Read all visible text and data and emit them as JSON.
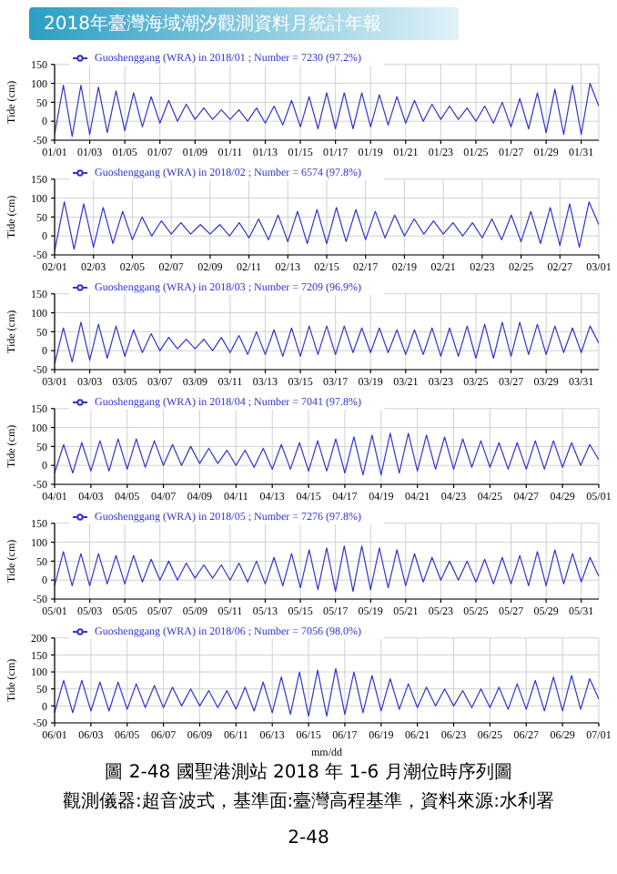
{
  "chart_data": [
    {
      "type": "line",
      "annotations": [
        "2018年臺灣海域潮汐觀測資料月統計年報"
      ],
      "ylabel": "Tide (cm)",
      "xlim": [
        "--01-01",
        "--02-01"
      ],
      "ylim": [
        -50,
        150
      ],
      "yticks": [
        -50,
        0,
        50,
        100,
        150
      ],
      "grid": true,
      "legend": "top left",
      "marker": "none",
      "line_style": "solid",
      "xticks": [
        {
          "value": "--01-01",
          "label": "01/01"
        },
        {
          "value": "--01-03",
          "label": "01/03"
        },
        {
          "value": "--01-05",
          "label": "01/05"
        },
        {
          "value": "--01-07",
          "label": "01/07"
        },
        {
          "value": "--01-09",
          "label": "01/09"
        },
        {
          "value": "--01-11",
          "label": "01/11"
        },
        {
          "value": "--01-13",
          "label": "01/13"
        },
        {
          "value": "--01-15",
          "label": "01/15"
        },
        {
          "value": "--01-17",
          "label": "01/17"
        },
        {
          "value": "--01-19",
          "label": "01/19"
        },
        {
          "value": "--01-21",
          "label": "01/21"
        },
        {
          "value": "--01-23",
          "label": "01/23"
        },
        {
          "value": "--01-25",
          "label": "01/25"
        },
        {
          "value": "--01-27",
          "label": "01/27"
        },
        {
          "value": "--01-29",
          "label": "01/29"
        },
        {
          "value": "--01-31",
          "label": "01/31"
        }
      ],
      "series": [
        {
          "name": "Guoshenggang (WRA) in 2018/01 ; Number = 7230 (97.2%)",
          "color": "#3333cc",
          "x": [
            "--01-01",
            "--01-01T12:00",
            "--01-02",
            "--01-02T12:00",
            "--01-03",
            "--01-03T12:00",
            "--01-04",
            "--01-04T12:00",
            "--01-05",
            "--01-05T12:00",
            "--01-06",
            "--01-06T12:00",
            "--01-07",
            "--01-07T12:00",
            "--01-08",
            "--01-08T12:00",
            "--01-09",
            "--01-09T12:00",
            "--01-10",
            "--01-10T12:00",
            "--01-11",
            "--01-11T12:00",
            "--01-12",
            "--01-12T12:00",
            "--01-13",
            "--01-13T12:00",
            "--01-14",
            "--01-14T12:00",
            "--01-15",
            "--01-15T12:00",
            "--01-16",
            "--01-16T12:00",
            "--01-17",
            "--01-17T12:00",
            "--01-18",
            "--01-18T12:00",
            "--01-19",
            "--01-19T12:00",
            "--01-20",
            "--01-20T12:00",
            "--01-21",
            "--01-21T12:00",
            "--01-22",
            "--01-22T12:00",
            "--01-23",
            "--01-23T12:00",
            "--01-24",
            "--01-24T12:00",
            "--01-25",
            "--01-25T12:00",
            "--01-26",
            "--01-26T12:00",
            "--01-27",
            "--01-27T12:00",
            "--01-28",
            "--01-28T12:00",
            "--01-29",
            "--01-29T12:00",
            "--01-30",
            "--01-30T12:00",
            "--01-31",
            "--01-31T12:00",
            "--02-01"
          ],
          "values": [
            -35,
            95,
            -40,
            95,
            -35,
            90,
            -30,
            80,
            -25,
            75,
            -15,
            65,
            -5,
            55,
            0,
            45,
            5,
            35,
            5,
            30,
            5,
            30,
            0,
            35,
            -5,
            40,
            -10,
            55,
            -15,
            65,
            -20,
            75,
            -20,
            75,
            -20,
            75,
            -15,
            70,
            -10,
            65,
            -5,
            55,
            0,
            45,
            5,
            40,
            5,
            35,
            0,
            40,
            -5,
            50,
            -15,
            60,
            -20,
            75,
            -30,
            85,
            -35,
            95,
            -35,
            100,
            40
          ]
        }
      ]
    },
    {
      "type": "line",
      "ylabel": "Tide (cm)",
      "xlim": [
        "--02-01",
        "--03-01"
      ],
      "ylim": [
        -50,
        150
      ],
      "yticks": [
        -50,
        0,
        50,
        100,
        150
      ],
      "grid": true,
      "legend": "top left",
      "marker": "none",
      "line_style": "solid",
      "xticks": [
        {
          "value": "--02-01",
          "label": "02/01"
        },
        {
          "value": "--02-03",
          "label": "02/03"
        },
        {
          "value": "--02-05",
          "label": "02/05"
        },
        {
          "value": "--02-07",
          "label": "02/07"
        },
        {
          "value": "--02-09",
          "label": "02/09"
        },
        {
          "value": "--02-11",
          "label": "02/11"
        },
        {
          "value": "--02-13",
          "label": "02/13"
        },
        {
          "value": "--02-15",
          "label": "02/15"
        },
        {
          "value": "--02-17",
          "label": "02/17"
        },
        {
          "value": "--02-19",
          "label": "02/19"
        },
        {
          "value": "--02-21",
          "label": "02/21"
        },
        {
          "value": "--02-23",
          "label": "02/23"
        },
        {
          "value": "--02-25",
          "label": "02/25"
        },
        {
          "value": "--02-27",
          "label": "02/27"
        },
        {
          "value": "--03-01",
          "label": "03/01"
        }
      ],
      "series": [
        {
          "name": "Guoshenggang (WRA) in 2018/02 ; Number = 6574 (97.8%)",
          "color": "#3333cc",
          "x": [
            "--02-01",
            "--02-01T12:00",
            "--02-02",
            "--02-02T12:00",
            "--02-03",
            "--02-03T12:00",
            "--02-04",
            "--02-04T12:00",
            "--02-05",
            "--02-05T12:00",
            "--02-06",
            "--02-06T12:00",
            "--02-07",
            "--02-07T12:00",
            "--02-08",
            "--02-08T12:00",
            "--02-09",
            "--02-09T12:00",
            "--02-10",
            "--02-10T12:00",
            "--02-11",
            "--02-11T12:00",
            "--02-12",
            "--02-12T12:00",
            "--02-13",
            "--02-13T12:00",
            "--02-14",
            "--02-14T12:00",
            "--02-15",
            "--02-15T12:00",
            "--02-16",
            "--02-16T12:00",
            "--02-17",
            "--02-17T12:00",
            "--02-18",
            "--02-18T12:00",
            "--02-19",
            "--02-19T12:00",
            "--02-20",
            "--02-20T12:00",
            "--02-21",
            "--02-21T12:00",
            "--02-22",
            "--02-22T12:00",
            "--02-23",
            "--02-23T12:00",
            "--02-24",
            "--02-24T12:00",
            "--02-25",
            "--02-25T12:00",
            "--02-26",
            "--02-26T12:00",
            "--02-27",
            "--02-27T12:00",
            "--02-28",
            "--02-28T12:00",
            "--03-01"
          ],
          "values": [
            -40,
            90,
            -35,
            85,
            -30,
            75,
            -20,
            65,
            -10,
            50,
            0,
            40,
            5,
            35,
            5,
            30,
            5,
            30,
            0,
            35,
            -5,
            45,
            -10,
            55,
            -15,
            65,
            -20,
            70,
            -20,
            75,
            -15,
            70,
            -10,
            65,
            -5,
            55,
            0,
            45,
            5,
            40,
            5,
            35,
            0,
            35,
            -5,
            45,
            -10,
            55,
            -15,
            65,
            -20,
            75,
            -25,
            85,
            -30,
            90,
            30
          ]
        }
      ]
    },
    {
      "type": "line",
      "ylabel": "Tide (cm)",
      "xlim": [
        "--03-01",
        "--04-01"
      ],
      "ylim": [
        -50,
        150
      ],
      "yticks": [
        -50,
        0,
        50,
        100,
        150
      ],
      "grid": true,
      "legend": "top left",
      "marker": "none",
      "line_style": "solid",
      "xticks": [
        {
          "value": "--03-01",
          "label": "03/01"
        },
        {
          "value": "--03-03",
          "label": "03/03"
        },
        {
          "value": "--03-05",
          "label": "03/05"
        },
        {
          "value": "--03-07",
          "label": "03/07"
        },
        {
          "value": "--03-09",
          "label": "03/09"
        },
        {
          "value": "--03-11",
          "label": "03/11"
        },
        {
          "value": "--03-13",
          "label": "03/13"
        },
        {
          "value": "--03-15",
          "label": "03/15"
        },
        {
          "value": "--03-17",
          "label": "03/17"
        },
        {
          "value": "--03-19",
          "label": "03/19"
        },
        {
          "value": "--03-21",
          "label": "03/21"
        },
        {
          "value": "--03-23",
          "label": "03/23"
        },
        {
          "value": "--03-25",
          "label": "03/25"
        },
        {
          "value": "--03-27",
          "label": "03/27"
        },
        {
          "value": "--03-29",
          "label": "03/29"
        },
        {
          "value": "--03-31",
          "label": "03/31"
        }
      ],
      "series": [
        {
          "name": "Guoshenggang (WRA) in 2018/03 ; Number = 7209 (96.9%)",
          "color": "#3333cc",
          "x": [
            "--03-01",
            "--03-01T12:00",
            "--03-02",
            "--03-02T12:00",
            "--03-03",
            "--03-03T12:00",
            "--03-04",
            "--03-04T12:00",
            "--03-05",
            "--03-05T12:00",
            "--03-06",
            "--03-06T12:00",
            "--03-07",
            "--03-07T12:00",
            "--03-08",
            "--03-08T12:00",
            "--03-09",
            "--03-09T12:00",
            "--03-10",
            "--03-10T12:00",
            "--03-11",
            "--03-11T12:00",
            "--03-12",
            "--03-12T12:00",
            "--03-13",
            "--03-13T12:00",
            "--03-14",
            "--03-14T12:00",
            "--03-15",
            "--03-15T12:00",
            "--03-16",
            "--03-16T12:00",
            "--03-17",
            "--03-17T12:00",
            "--03-18",
            "--03-18T12:00",
            "--03-19",
            "--03-19T12:00",
            "--03-20",
            "--03-20T12:00",
            "--03-21",
            "--03-21T12:00",
            "--03-22",
            "--03-22T12:00",
            "--03-23",
            "--03-23T12:00",
            "--03-24",
            "--03-24T12:00",
            "--03-25",
            "--03-25T12:00",
            "--03-26",
            "--03-26T12:00",
            "--03-27",
            "--03-27T12:00",
            "--03-28",
            "--03-28T12:00",
            "--03-29",
            "--03-29T12:00",
            "--03-30",
            "--03-30T12:00",
            "--03-31",
            "--03-31T12:00",
            "--04-01"
          ],
          "values": [
            -35,
            60,
            -30,
            75,
            -25,
            70,
            -20,
            65,
            -15,
            55,
            -5,
            45,
            0,
            35,
            5,
            30,
            5,
            30,
            0,
            35,
            -5,
            40,
            -10,
            50,
            -10,
            55,
            -15,
            60,
            -15,
            65,
            -10,
            65,
            -10,
            65,
            -5,
            60,
            -5,
            60,
            -5,
            55,
            -10,
            55,
            -10,
            60,
            -15,
            60,
            -15,
            65,
            -20,
            70,
            -20,
            75,
            -15,
            75,
            -10,
            70,
            -10,
            65,
            -5,
            60,
            -5,
            65,
            20
          ]
        }
      ]
    },
    {
      "type": "line",
      "ylabel": "Tide (cm)",
      "xlim": [
        "--04-01",
        "--05-01"
      ],
      "ylim": [
        -50,
        150
      ],
      "yticks": [
        -50,
        0,
        50,
        100,
        150
      ],
      "grid": true,
      "legend": "top left",
      "marker": "none",
      "line_style": "solid",
      "xticks": [
        {
          "value": "--04-01",
          "label": "04/01"
        },
        {
          "value": "--04-03",
          "label": "04/03"
        },
        {
          "value": "--04-05",
          "label": "04/05"
        },
        {
          "value": "--04-07",
          "label": "04/07"
        },
        {
          "value": "--04-09",
          "label": "04/09"
        },
        {
          "value": "--04-11",
          "label": "04/11"
        },
        {
          "value": "--04-13",
          "label": "04/13"
        },
        {
          "value": "--04-15",
          "label": "04/15"
        },
        {
          "value": "--04-17",
          "label": "04/17"
        },
        {
          "value": "--04-19",
          "label": "04/19"
        },
        {
          "value": "--04-21",
          "label": "04/21"
        },
        {
          "value": "--04-23",
          "label": "04/23"
        },
        {
          "value": "--04-25",
          "label": "04/25"
        },
        {
          "value": "--04-27",
          "label": "04/27"
        },
        {
          "value": "--04-29",
          "label": "04/29"
        },
        {
          "value": "--05-01",
          "label": "05/01"
        }
      ],
      "series": [
        {
          "name": "Guoshenggang (WRA) in 2018/04 ; Number = 7041 (97.8%)",
          "color": "#3333cc",
          "x": [
            "--04-01",
            "--04-01T12:00",
            "--04-02",
            "--04-02T12:00",
            "--04-03",
            "--04-03T12:00",
            "--04-04",
            "--04-04T12:00",
            "--04-05",
            "--04-05T12:00",
            "--04-06",
            "--04-06T12:00",
            "--04-07",
            "--04-07T12:00",
            "--04-08",
            "--04-08T12:00",
            "--04-09",
            "--04-09T12:00",
            "--04-10",
            "--04-10T12:00",
            "--04-11",
            "--04-11T12:00",
            "--04-12",
            "--04-12T12:00",
            "--04-13",
            "--04-13T12:00",
            "--04-14",
            "--04-14T12:00",
            "--04-15",
            "--04-15T12:00",
            "--04-16",
            "--04-16T12:00",
            "--04-17",
            "--04-17T12:00",
            "--04-18",
            "--04-18T12:00",
            "--04-19",
            "--04-19T12:00",
            "--04-20",
            "--04-20T12:00",
            "--04-21",
            "--04-21T12:00",
            "--04-22",
            "--04-22T12:00",
            "--04-23",
            "--04-23T12:00",
            "--04-24",
            "--04-24T12:00",
            "--04-25",
            "--04-25T12:00",
            "--04-26",
            "--04-26T12:00",
            "--04-27",
            "--04-27T12:00",
            "--04-28",
            "--04-28T12:00",
            "--04-29",
            "--04-29T12:00",
            "--04-30",
            "--04-30T12:00",
            "--05-01"
          ],
          "values": [
            -20,
            55,
            -20,
            60,
            -15,
            65,
            -15,
            70,
            -10,
            70,
            -5,
            65,
            0,
            55,
            0,
            50,
            5,
            45,
            5,
            40,
            0,
            40,
            -5,
            45,
            -10,
            55,
            -10,
            60,
            -15,
            65,
            -15,
            70,
            -20,
            75,
            -25,
            80,
            -25,
            85,
            -20,
            85,
            -15,
            80,
            -10,
            75,
            -10,
            70,
            -5,
            65,
            -5,
            60,
            -10,
            60,
            -10,
            65,
            -10,
            65,
            -5,
            60,
            0,
            55,
            15
          ]
        }
      ]
    },
    {
      "type": "line",
      "ylabel": "Tide (cm)",
      "xlim": [
        "--05-01",
        "--06-01"
      ],
      "ylim": [
        -50,
        150
      ],
      "yticks": [
        -50,
        0,
        50,
        100,
        150
      ],
      "grid": true,
      "legend": "top left",
      "marker": "none",
      "line_style": "solid",
      "xticks": [
        {
          "value": "--05-01",
          "label": "05/01"
        },
        {
          "value": "--05-03",
          "label": "05/03"
        },
        {
          "value": "--05-05",
          "label": "05/05"
        },
        {
          "value": "--05-07",
          "label": "05/07"
        },
        {
          "value": "--05-09",
          "label": "05/09"
        },
        {
          "value": "--05-11",
          "label": "05/11"
        },
        {
          "value": "--05-13",
          "label": "05/13"
        },
        {
          "value": "--05-15",
          "label": "05/15"
        },
        {
          "value": "--05-17",
          "label": "05/17"
        },
        {
          "value": "--05-19",
          "label": "05/19"
        },
        {
          "value": "--05-21",
          "label": "05/21"
        },
        {
          "value": "--05-23",
          "label": "05/23"
        },
        {
          "value": "--05-25",
          "label": "05/25"
        },
        {
          "value": "--05-27",
          "label": "05/27"
        },
        {
          "value": "--05-29",
          "label": "05/29"
        },
        {
          "value": "--05-31",
          "label": "05/31"
        }
      ],
      "series": [
        {
          "name": "Guoshenggang (WRA) in 2018/05 ; Number = 7276 (97.8%)",
          "color": "#3333cc",
          "x": [
            "--05-01",
            "--05-01T12:00",
            "--05-02",
            "--05-02T12:00",
            "--05-03",
            "--05-03T12:00",
            "--05-04",
            "--05-04T12:00",
            "--05-05",
            "--05-05T12:00",
            "--05-06",
            "--05-06T12:00",
            "--05-07",
            "--05-07T12:00",
            "--05-08",
            "--05-08T12:00",
            "--05-09",
            "--05-09T12:00",
            "--05-10",
            "--05-10T12:00",
            "--05-11",
            "--05-11T12:00",
            "--05-12",
            "--05-12T12:00",
            "--05-13",
            "--05-13T12:00",
            "--05-14",
            "--05-14T12:00",
            "--05-15",
            "--05-15T12:00",
            "--05-16",
            "--05-16T12:00",
            "--05-17",
            "--05-17T12:00",
            "--05-18",
            "--05-18T12:00",
            "--05-19",
            "--05-19T12:00",
            "--05-20",
            "--05-20T12:00",
            "--05-21",
            "--05-21T12:00",
            "--05-22",
            "--05-22T12:00",
            "--05-23",
            "--05-23T12:00",
            "--05-24",
            "--05-24T12:00",
            "--05-25",
            "--05-25T12:00",
            "--05-26",
            "--05-26T12:00",
            "--05-27",
            "--05-27T12:00",
            "--05-28",
            "--05-28T12:00",
            "--05-29",
            "--05-29T12:00",
            "--05-30",
            "--05-30T12:00",
            "--05-31",
            "--05-31T12:00",
            "--06-01"
          ],
          "values": [
            -15,
            75,
            -15,
            70,
            -15,
            70,
            -10,
            65,
            -10,
            65,
            -5,
            55,
            0,
            50,
            0,
            45,
            5,
            40,
            5,
            40,
            0,
            45,
            -5,
            50,
            -10,
            60,
            -15,
            70,
            -20,
            80,
            -25,
            85,
            -30,
            90,
            -30,
            90,
            -25,
            85,
            -20,
            80,
            -15,
            70,
            -5,
            60,
            0,
            50,
            0,
            50,
            -5,
            55,
            -10,
            60,
            -10,
            65,
            -15,
            75,
            -15,
            80,
            -10,
            70,
            -5,
            60,
            10
          ]
        }
      ]
    },
    {
      "type": "line",
      "annotations": [
        "圖 2-48 國聖港測站 2018 年 1-6 月潮位時序列圖",
        "觀測儀器:超音波式，基準面:臺灣高程基準，資料來源:水利署",
        "2-48"
      ],
      "xlabel": "mm/dd",
      "ylabel": "Tide (cm)",
      "xlim": [
        "--06-01",
        "--07-01"
      ],
      "ylim": [
        -50,
        200
      ],
      "yticks": [
        -50,
        0,
        50,
        100,
        150,
        200
      ],
      "grid": true,
      "legend": "top left",
      "marker": "none",
      "line_style": "solid",
      "xticks": [
        {
          "value": "--06-01",
          "label": "06/01"
        },
        {
          "value": "--06-03",
          "label": "06/03"
        },
        {
          "value": "--06-05",
          "label": "06/05"
        },
        {
          "value": "--06-07",
          "label": "06/07"
        },
        {
          "value": "--06-09",
          "label": "06/09"
        },
        {
          "value": "--06-11",
          "label": "06/11"
        },
        {
          "value": "--06-13",
          "label": "06/13"
        },
        {
          "value": "--06-15",
          "label": "06/15"
        },
        {
          "value": "--06-17",
          "label": "06/17"
        },
        {
          "value": "--06-19",
          "label": "06/19"
        },
        {
          "value": "--06-21",
          "label": "06/21"
        },
        {
          "value": "--06-23",
          "label": "06/23"
        },
        {
          "value": "--06-25",
          "label": "06/25"
        },
        {
          "value": "--06-27",
          "label": "06/27"
        },
        {
          "value": "--06-29",
          "label": "06/29"
        },
        {
          "value": "--07-01",
          "label": "07/01"
        }
      ],
      "series": [
        {
          "name": "Guoshenggang (WRA) in 2018/06 ; Number = 7056 (98.0%)",
          "color": "#3333cc",
          "x": [
            "--06-01",
            "--06-01T12:00",
            "--06-02",
            "--06-02T12:00",
            "--06-03",
            "--06-03T12:00",
            "--06-04",
            "--06-04T12:00",
            "--06-05",
            "--06-05T12:00",
            "--06-06",
            "--06-06T12:00",
            "--06-07",
            "--06-07T12:00",
            "--06-08",
            "--06-08T12:00",
            "--06-09",
            "--06-09T12:00",
            "--06-10",
            "--06-10T12:00",
            "--06-11",
            "--06-11T12:00",
            "--06-12",
            "--06-12T12:00",
            "--06-13",
            "--06-13T12:00",
            "--06-14",
            "--06-14T12:00",
            "--06-15",
            "--06-15T12:00",
            "--06-16",
            "--06-16T12:00",
            "--06-17",
            "--06-17T12:00",
            "--06-18",
            "--06-18T12:00",
            "--06-19",
            "--06-19T12:00",
            "--06-20",
            "--06-20T12:00",
            "--06-21",
            "--06-21T12:00",
            "--06-22",
            "--06-22T12:00",
            "--06-23",
            "--06-23T12:00",
            "--06-24",
            "--06-24T12:00",
            "--06-25",
            "--06-25T12:00",
            "--06-26",
            "--06-26T12:00",
            "--06-27",
            "--06-27T12:00",
            "--06-28",
            "--06-28T12:00",
            "--06-29",
            "--06-29T12:00",
            "--06-30",
            "--06-30T12:00",
            "--07-01"
          ],
          "values": [
            -20,
            75,
            -20,
            75,
            -15,
            70,
            -15,
            70,
            -10,
            65,
            -5,
            60,
            -5,
            55,
            0,
            50,
            0,
            45,
            -5,
            45,
            -10,
            55,
            -15,
            70,
            -20,
            85,
            -25,
            100,
            -30,
            105,
            -30,
            110,
            -25,
            100,
            -20,
            90,
            -15,
            80,
            -10,
            65,
            -5,
            55,
            0,
            50,
            0,
            45,
            -5,
            50,
            -5,
            55,
            -10,
            65,
            -10,
            75,
            -15,
            85,
            -15,
            90,
            -10,
            80,
            20
          ]
        }
      ]
    }
  ]
}
